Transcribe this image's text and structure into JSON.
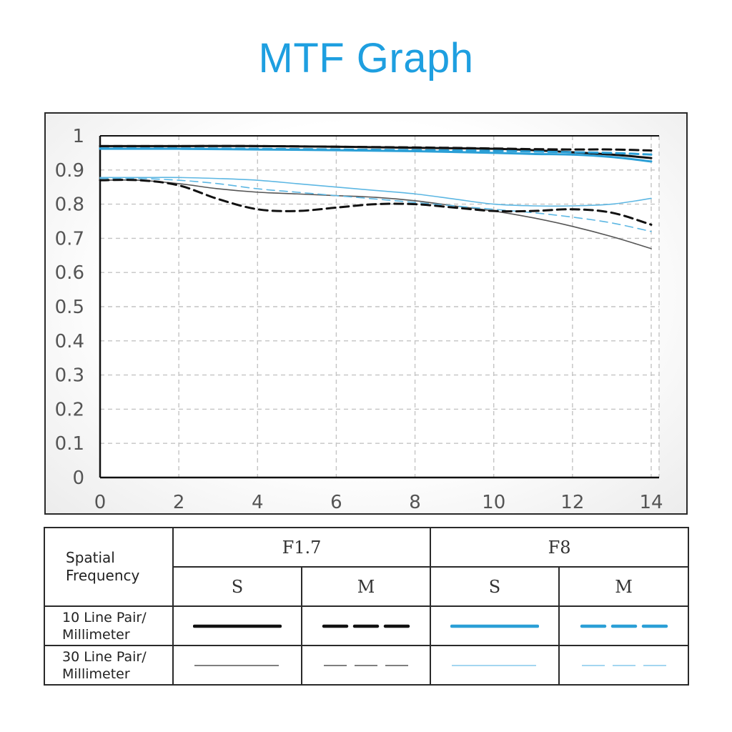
{
  "title": "MTF Graph",
  "colors": {
    "black": "#111111",
    "blue": "#2b9fd6"
  },
  "chart_data": {
    "type": "line",
    "title": "MTF Graph",
    "xlabel": "",
    "ylabel": "",
    "xlim": [
      0,
      14.2
    ],
    "ylim": [
      0,
      1
    ],
    "grid": true,
    "x_ticks": [
      "0",
      "2",
      "4",
      "6",
      "8",
      "10",
      "12",
      "14"
    ],
    "y_ticks": [
      "0",
      "0.1",
      "0.2",
      "0.3",
      "0.4",
      "0.5",
      "0.6",
      "0.7",
      "0.8",
      "0.9",
      "1"
    ],
    "series": [
      {
        "aperture": "F1.7",
        "freq": "10 Line Pair/Millimeter",
        "orient": "S",
        "color": "#111111",
        "dashed": false,
        "weight": "heavy",
        "x": [
          0,
          2,
          4,
          6,
          8,
          10,
          11,
          12,
          13,
          14
        ],
        "y": [
          0.97,
          0.97,
          0.97,
          0.968,
          0.965,
          0.962,
          0.958,
          0.952,
          0.945,
          0.935
        ]
      },
      {
        "aperture": "F1.7",
        "freq": "10 Line Pair/Millimeter",
        "orient": "M",
        "color": "#111111",
        "dashed": true,
        "weight": "heavy",
        "x": [
          0,
          2,
          4,
          6,
          8,
          10,
          11,
          12,
          13,
          14
        ],
        "y": [
          0.97,
          0.97,
          0.97,
          0.968,
          0.966,
          0.963,
          0.961,
          0.96,
          0.96,
          0.957
        ]
      },
      {
        "aperture": "F1.7",
        "freq": "30 Line Pair/Millimeter",
        "orient": "S",
        "color": "#111111",
        "dashed": false,
        "weight": "light",
        "x": [
          0,
          1,
          2,
          3,
          4,
          5,
          6,
          7,
          8,
          9,
          10,
          11,
          12,
          13,
          14
        ],
        "y": [
          0.87,
          0.87,
          0.86,
          0.845,
          0.835,
          0.83,
          0.825,
          0.82,
          0.81,
          0.795,
          0.78,
          0.76,
          0.735,
          0.705,
          0.67
        ]
      },
      {
        "aperture": "F1.7",
        "freq": "30 Line Pair/Millimeter",
        "orient": "M",
        "color": "#111111",
        "dashed": true,
        "weight": "heavy",
        "x": [
          0,
          1,
          2,
          3,
          4,
          5,
          6,
          7,
          8,
          9,
          10,
          11,
          12,
          13,
          14
        ],
        "y": [
          0.87,
          0.87,
          0.855,
          0.815,
          0.785,
          0.78,
          0.79,
          0.8,
          0.8,
          0.79,
          0.78,
          0.78,
          0.785,
          0.775,
          0.74
        ]
      },
      {
        "aperture": "F8",
        "freq": "10 Line Pair/Millimeter",
        "orient": "S",
        "color": "#2b9fd6",
        "dashed": false,
        "weight": "heavy",
        "x": [
          0,
          2,
          4,
          6,
          8,
          10,
          11,
          12,
          13,
          14
        ],
        "y": [
          0.962,
          0.962,
          0.96,
          0.958,
          0.955,
          0.95,
          0.947,
          0.945,
          0.938,
          0.925
        ]
      },
      {
        "aperture": "F8",
        "freq": "10 Line Pair/Millimeter",
        "orient": "M",
        "color": "#2b9fd6",
        "dashed": true,
        "weight": "heavy",
        "x": [
          0,
          2,
          4,
          6,
          8,
          10,
          11,
          12,
          13,
          14
        ],
        "y": [
          0.963,
          0.963,
          0.962,
          0.96,
          0.958,
          0.956,
          0.954,
          0.952,
          0.95,
          0.945
        ]
      },
      {
        "aperture": "F8",
        "freq": "30 Line Pair/Millimeter",
        "orient": "S",
        "color": "#2b9fd6",
        "dashed": false,
        "weight": "light",
        "x": [
          0,
          1,
          2,
          3,
          4,
          5,
          6,
          7,
          8,
          9,
          10,
          11,
          12,
          13,
          14
        ],
        "y": [
          0.878,
          0.878,
          0.878,
          0.875,
          0.87,
          0.86,
          0.85,
          0.84,
          0.83,
          0.815,
          0.8,
          0.795,
          0.795,
          0.8,
          0.817
        ]
      },
      {
        "aperture": "F8",
        "freq": "30 Line Pair/Millimeter",
        "orient": "M",
        "color": "#2b9fd6",
        "dashed": true,
        "weight": "light",
        "x": [
          0,
          1,
          2,
          3,
          4,
          5,
          6,
          7,
          8,
          9,
          10,
          11,
          12,
          13,
          14
        ],
        "y": [
          0.875,
          0.875,
          0.87,
          0.86,
          0.845,
          0.835,
          0.825,
          0.815,
          0.805,
          0.795,
          0.785,
          0.775,
          0.762,
          0.745,
          0.72
        ]
      }
    ]
  },
  "legend": {
    "spatial_frequency": "Spatial Frequency",
    "aperture_1": "F1.7",
    "aperture_2": "F8",
    "sagittal": "S",
    "meridional": "M",
    "row_10lp": "10 Line Pair/ Millimeter",
    "row_30lp": "30 Line Pair/ Millimeter"
  }
}
